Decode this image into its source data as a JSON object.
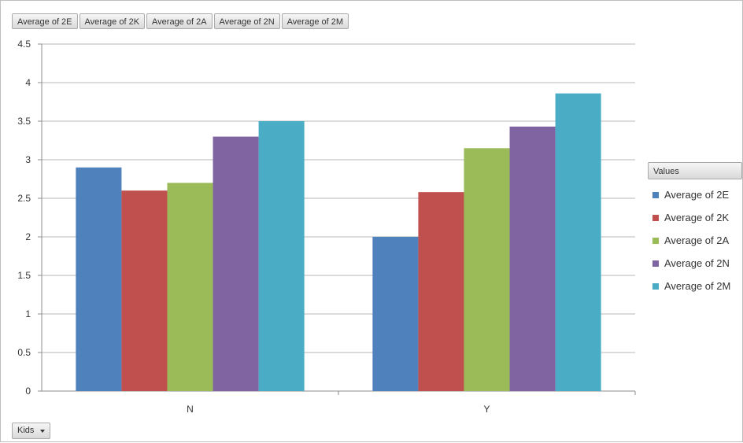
{
  "field_buttons": [
    "Average of 2E",
    "Average of 2K",
    "Average of 2A",
    "Average of 2N",
    "Average of 2M"
  ],
  "legend_title": "Values",
  "axis_field_button": "Kids",
  "colors": {
    "Average of 2E": "#4f81bd",
    "Average of 2K": "#c0504d",
    "Average of 2A": "#9bbb59",
    "Average of 2N": "#8064a2",
    "Average of 2M": "#4bacc6"
  },
  "chart_data": {
    "type": "bar",
    "categories": [
      "N",
      "Y"
    ],
    "series": [
      {
        "name": "Average of 2E",
        "values": [
          2.9,
          2.0
        ]
      },
      {
        "name": "Average of 2K",
        "values": [
          2.6,
          2.58
        ]
      },
      {
        "name": "Average of 2A",
        "values": [
          2.7,
          3.15
        ]
      },
      {
        "name": "Average of 2N",
        "values": [
          3.3,
          3.43
        ]
      },
      {
        "name": "Average of 2M",
        "values": [
          3.5,
          3.86
        ]
      }
    ],
    "yticks": [
      "0",
      "0.5",
      "1",
      "1.5",
      "2",
      "2.5",
      "3",
      "3.5",
      "4",
      "4.5"
    ],
    "ylim": [
      0,
      4.5
    ],
    "grid": true,
    "legend": "right"
  }
}
